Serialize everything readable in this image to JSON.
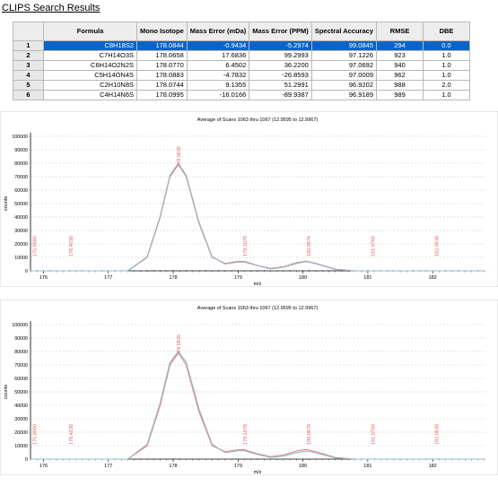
{
  "window": {
    "title": "CLIPS Search Results"
  },
  "table": {
    "headers": [
      "",
      "Formula",
      "Mono Isotope",
      "Mass Error (mDa)",
      "Mass Error (PPM)",
      "Spectral Accuracy",
      "RMSE",
      "DBE"
    ],
    "rows": [
      [
        "1",
        "C8H18S2",
        "178.0844",
        "-0.9434",
        "-5.2974",
        "99.0845",
        "294",
        "0.0"
      ],
      [
        "2",
        "C7H14O3S",
        "178.0658",
        "17.6836",
        "99.2993",
        "97.1226",
        "923",
        "1.0"
      ],
      [
        "3",
        "C6H14O2N2S",
        "178.0770",
        "6.4502",
        "36.2200",
        "97.0692",
        "940",
        "1.0"
      ],
      [
        "4",
        "C5H14ON4S",
        "178.0883",
        "-4.7832",
        "-26.8593",
        "97.0009",
        "962",
        "1.0"
      ],
      [
        "5",
        "C2H10N8S",
        "178.0744",
        "9.1355",
        "51.2991",
        "96.9202",
        "988",
        "2.0"
      ],
      [
        "6",
        "C4H14N6S",
        "178.0995",
        "-16.0166",
        "-89.9387",
        "96.9189",
        "989",
        "1.0"
      ]
    ],
    "selected_row": 0
  },
  "chart_data": [
    {
      "type": "line",
      "title": "Average of Scans 1063 thru 1067 (12.9595 to 12.9967)",
      "xlabel": "m/z",
      "ylabel": "counts",
      "xlim": [
        175.8,
        182.8
      ],
      "ylim": [
        0,
        100000
      ],
      "x_ticks": [
        176,
        177,
        178,
        179,
        180,
        181,
        182
      ],
      "y_ticks": [
        0,
        10000,
        20000,
        30000,
        40000,
        50000,
        60000,
        70000,
        80000,
        90000,
        100000
      ],
      "peak_labels": [
        "175.8590",
        "176.4230",
        "178.0835",
        "179.1078",
        "180.0870",
        "181.0760",
        "182.0630"
      ],
      "series": [
        {
          "color": "#f08080",
          "points": [
            [
              175.8,
              0
            ],
            [
              177.3,
              0
            ],
            [
              177.6,
              10000
            ],
            [
              177.8,
              40000
            ],
            [
              177.95,
              70000
            ],
            [
              178.08,
              79000
            ],
            [
              178.2,
              70000
            ],
            [
              178.4,
              35000
            ],
            [
              178.6,
              10000
            ],
            [
              178.8,
              5500
            ],
            [
              179.0,
              7000
            ],
            [
              179.1,
              7000
            ],
            [
              179.3,
              4000
            ],
            [
              179.5,
              1800
            ],
            [
              179.7,
              3000
            ],
            [
              179.9,
              6000
            ],
            [
              180.05,
              7200
            ],
            [
              180.2,
              5500
            ],
            [
              180.5,
              1200
            ],
            [
              180.8,
              0
            ],
            [
              182.8,
              0
            ]
          ]
        },
        {
          "color": "#8fb8c8",
          "points": [
            [
              175.8,
              0
            ],
            [
              177.3,
              0
            ],
            [
              177.6,
              10500
            ],
            [
              177.8,
              41000
            ],
            [
              177.95,
              71000
            ],
            [
              178.08,
              80000
            ],
            [
              178.2,
              71000
            ],
            [
              178.4,
              36000
            ],
            [
              178.6,
              10500
            ],
            [
              178.8,
              5000
            ],
            [
              179.0,
              6500
            ],
            [
              179.1,
              6500
            ],
            [
              179.3,
              3700
            ],
            [
              179.5,
              1500
            ],
            [
              179.7,
              2600
            ],
            [
              179.9,
              5500
            ],
            [
              180.05,
              6900
            ],
            [
              180.2,
              5200
            ],
            [
              180.5,
              1000
            ],
            [
              180.8,
              0
            ],
            [
              182.8,
              0
            ]
          ]
        }
      ]
    },
    {
      "type": "line",
      "title": "Average of Scans 1063 thru 1067 (12.9595 to 12.9967)",
      "xlabel": "m/z",
      "ylabel": "counts",
      "xlim": [
        175.8,
        182.8
      ],
      "ylim": [
        0,
        100000
      ],
      "x_ticks": [
        176,
        177,
        178,
        179,
        180,
        181,
        182
      ],
      "y_ticks": [
        0,
        10000,
        20000,
        30000,
        40000,
        50000,
        60000,
        70000,
        80000,
        90000,
        100000
      ],
      "peak_labels": [
        "175.8590",
        "176.4230",
        "178.0835",
        "179.1078",
        "180.0870",
        "181.0760",
        "182.0630"
      ],
      "series": [
        {
          "color": "#f08080",
          "points": [
            [
              175.8,
              0
            ],
            [
              177.3,
              0
            ],
            [
              177.6,
              10000
            ],
            [
              177.8,
              40000
            ],
            [
              177.95,
              70000
            ],
            [
              178.08,
              79000
            ],
            [
              178.2,
              70000
            ],
            [
              178.4,
              35000
            ],
            [
              178.6,
              10000
            ],
            [
              178.8,
              5500
            ],
            [
              179.0,
              7000
            ],
            [
              179.1,
              7000
            ],
            [
              179.3,
              4000
            ],
            [
              179.5,
              1800
            ],
            [
              179.7,
              3000
            ],
            [
              179.9,
              6000
            ],
            [
              180.05,
              7200
            ],
            [
              180.2,
              5500
            ],
            [
              180.5,
              1200
            ],
            [
              180.8,
              0
            ],
            [
              182.8,
              0
            ]
          ]
        },
        {
          "color": "#8fb8c8",
          "points": [
            [
              175.8,
              0
            ],
            [
              177.3,
              0
            ],
            [
              177.6,
              11000
            ],
            [
              177.8,
              42000
            ],
            [
              177.95,
              72000
            ],
            [
              178.08,
              80000
            ],
            [
              178.2,
              72000
            ],
            [
              178.4,
              37000
            ],
            [
              178.6,
              11000
            ],
            [
              178.8,
              4800
            ],
            [
              179.0,
              6200
            ],
            [
              179.1,
              6200
            ],
            [
              179.3,
              3500
            ],
            [
              179.5,
              1300
            ],
            [
              179.7,
              2200
            ],
            [
              179.9,
              4800
            ],
            [
              180.05,
              6000
            ],
            [
              180.2,
              4600
            ],
            [
              180.5,
              900
            ],
            [
              180.8,
              0
            ],
            [
              182.8,
              0
            ]
          ]
        }
      ]
    }
  ]
}
